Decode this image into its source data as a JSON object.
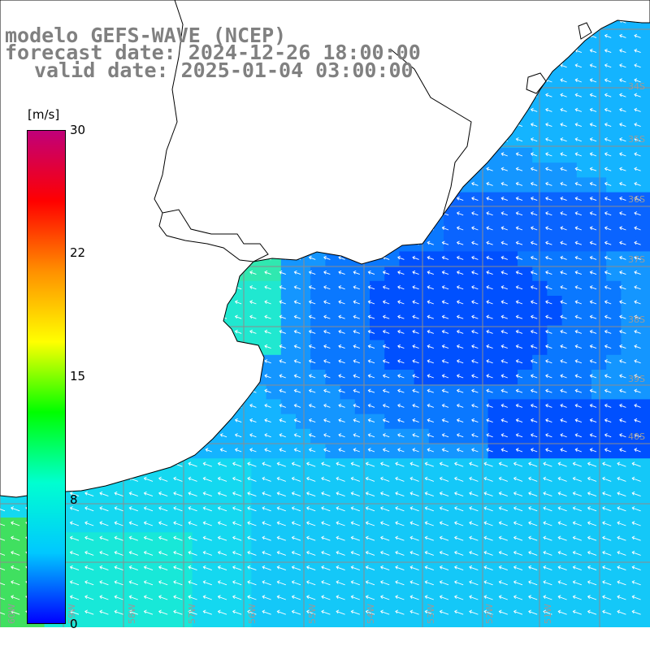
{
  "header": {
    "model": "modelo GEFS-WAVE (NCEP)",
    "forecast": "forecast date: 2024-12-26 18:00:00",
    "valid": "valid date: 2025-01-04 03:00:00"
  },
  "colorbar": {
    "unit": "[m/s]",
    "ticks": [
      "30",
      "22",
      "15",
      "8",
      "0"
    ],
    "colors": [
      "#0000ff",
      "#00c8ff",
      "#00ffd0",
      "#00ff00",
      "#ffff00",
      "#ff9000",
      "#ff0000",
      "#c0007a"
    ]
  },
  "grid": {
    "lat_labels": [
      "34S",
      "35S",
      "36S",
      "37S",
      "38S",
      "39S",
      "40S"
    ],
    "lon_labels": [
      "60W",
      "59W",
      "58W",
      "57W",
      "56W",
      "55W",
      "54W",
      "53W",
      "52W",
      "51W"
    ]
  },
  "field": {
    "variable": "wind speed",
    "direction": "from south-east (arrows pointing north-west)",
    "land_color": "#ffffff",
    "coast_color": "#000000"
  }
}
